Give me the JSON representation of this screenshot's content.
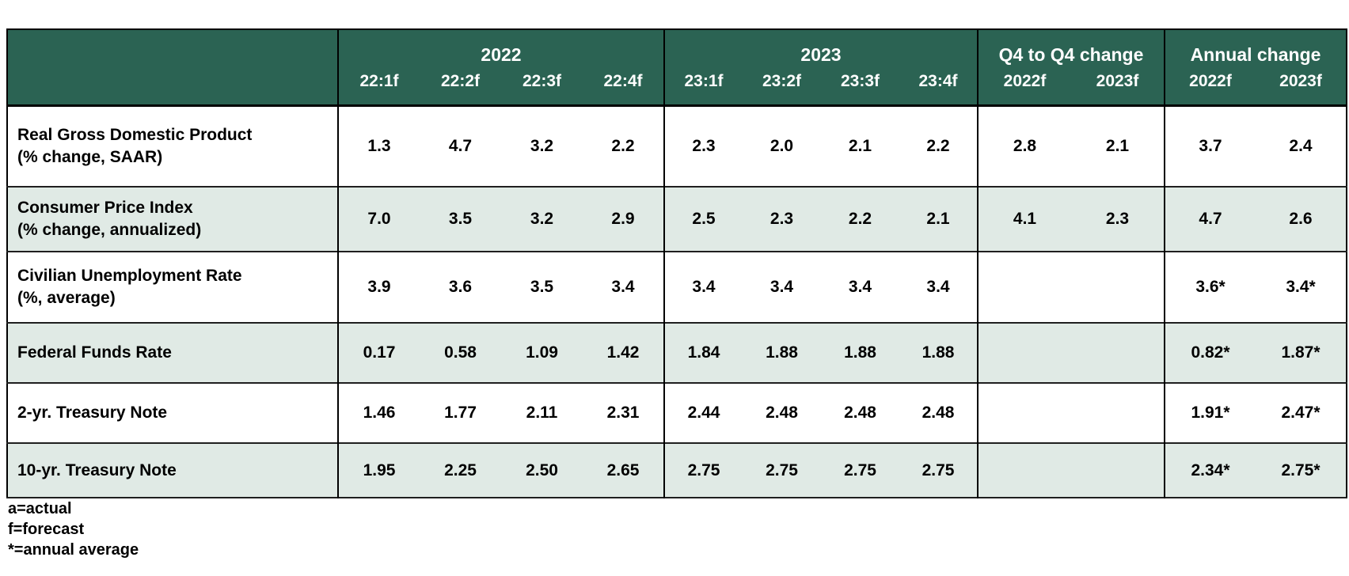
{
  "chart_data": {
    "type": "table",
    "column_groups": [
      {
        "label": "2022",
        "subcolumns": [
          "22:1f",
          "22:2f",
          "22:3f",
          "22:4f"
        ]
      },
      {
        "label": "2023",
        "subcolumns": [
          "23:1f",
          "23:2f",
          "23:3f",
          "23:4f"
        ]
      },
      {
        "label": "Q4 to Q4 change",
        "subcolumns": [
          "2022f",
          "2023f"
        ]
      },
      {
        "label": "Annual change",
        "subcolumns": [
          "2022f",
          "2023f"
        ]
      }
    ],
    "rows": [
      {
        "label": "Real Gross Domestic Product",
        "sublabel": "(% change, SAAR)",
        "values": [
          "1.3",
          "4.7",
          "3.2",
          "2.2",
          "2.3",
          "2.0",
          "2.1",
          "2.2",
          "2.8",
          "2.1",
          "3.7",
          "2.4"
        ]
      },
      {
        "label": "Consumer Price Index",
        "sublabel": "(% change, annualized)",
        "values": [
          "7.0",
          "3.5",
          "3.2",
          "2.9",
          "2.5",
          "2.3",
          "2.2",
          "2.1",
          "4.1",
          "2.3",
          "4.7",
          "2.6"
        ]
      },
      {
        "label": "Civilian Unemployment Rate",
        "sublabel": "(%, average)",
        "values": [
          "3.9",
          "3.6",
          "3.5",
          "3.4",
          "3.4",
          "3.4",
          "3.4",
          "3.4",
          "",
          "",
          "3.6*",
          "3.4*"
        ]
      },
      {
        "label": "Federal Funds Rate",
        "sublabel": "",
        "values": [
          "0.17",
          "0.58",
          "1.09",
          "1.42",
          "1.84",
          "1.88",
          "1.88",
          "1.88",
          "",
          "",
          "0.82*",
          "1.87*"
        ]
      },
      {
        "label": "2-yr. Treasury Note",
        "sublabel": "",
        "values": [
          "1.46",
          "1.77",
          "2.11",
          "2.31",
          "2.44",
          "2.48",
          "2.48",
          "2.48",
          "",
          "",
          "1.91*",
          "2.47*"
        ]
      },
      {
        "label": "10-yr. Treasury Note",
        "sublabel": "",
        "values": [
          "1.95",
          "2.25",
          "2.50",
          "2.65",
          "2.75",
          "2.75",
          "2.75",
          "2.75",
          "",
          "",
          "2.34*",
          "2.75*"
        ]
      }
    ],
    "footnotes": [
      "a=actual",
      "f=forecast",
      "*=annual average"
    ]
  },
  "colors": {
    "header_bg": "#2b6353",
    "shaded_row_bg": "#e0eae5",
    "border": "#000000",
    "header_text": "#ffffff",
    "body_text": "#000000"
  }
}
